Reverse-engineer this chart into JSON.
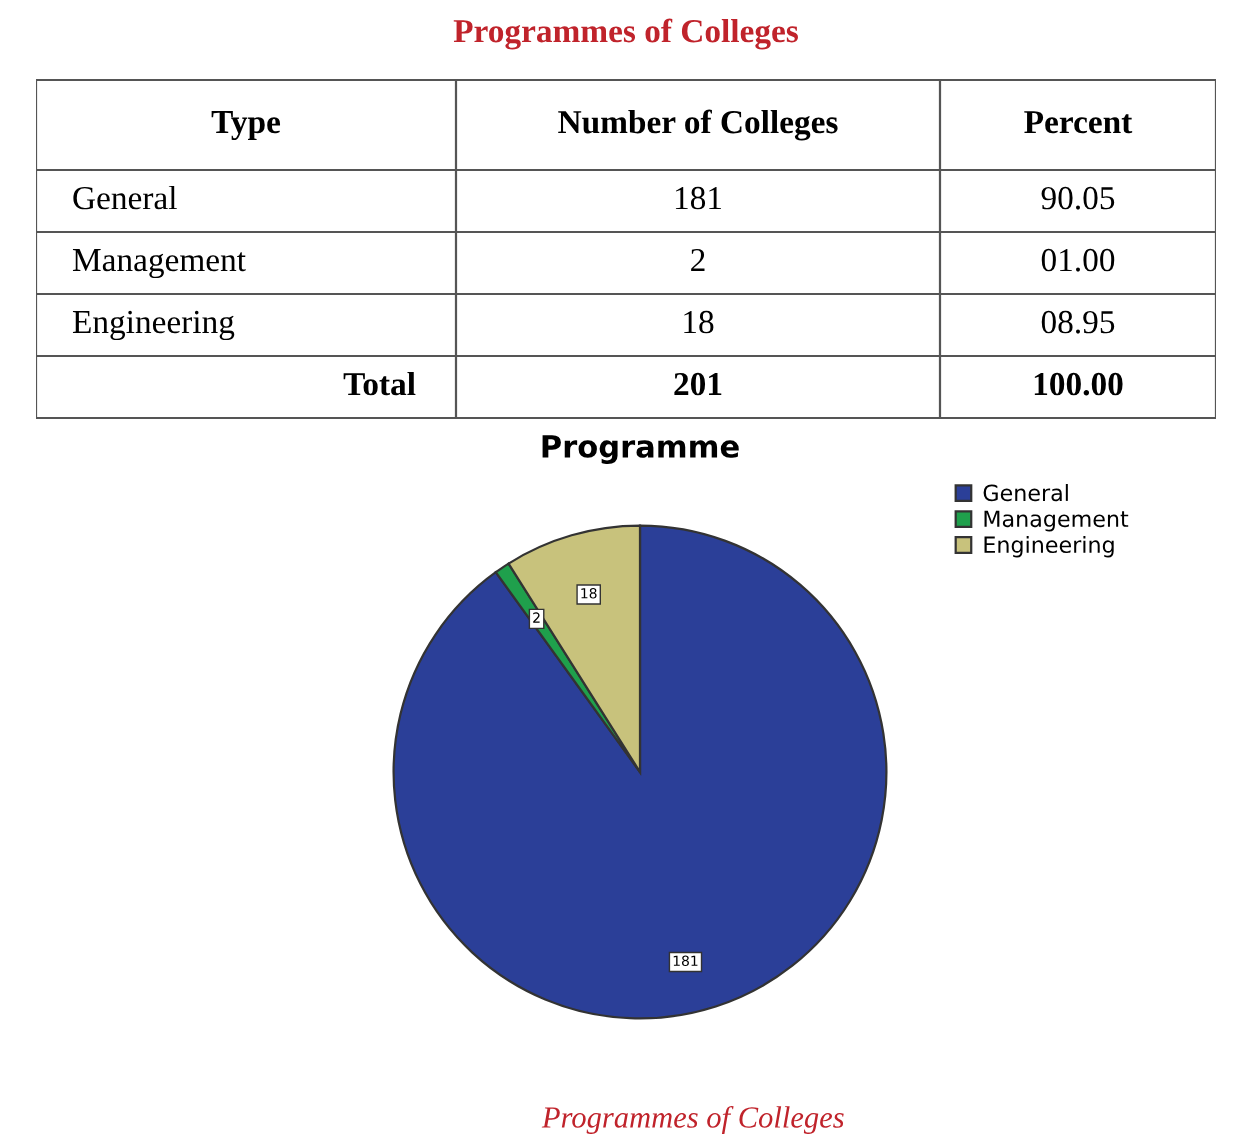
{
  "chart_data": [
    {
      "type": "other",
      "title": "Programmes of Colleges",
      "categories": [
        "Type",
        "Number of Colleges",
        "Percent"
      ],
      "annotations": [
        "General",
        "181",
        "90.05",
        "Management",
        "2",
        "01.00",
        "Engineering",
        "18",
        "08.95",
        "Total",
        "201",
        "100.00"
      ]
    },
    {
      "type": "pie",
      "title": "Programme",
      "categories": [
        "General",
        "Management",
        "Engineering"
      ],
      "values": [
        181,
        2,
        18
      ],
      "colors": [
        "#2b3f98",
        "#1fa04c",
        "#c8c27c"
      ],
      "data_labels": true,
      "legend": "top right",
      "annotations": [
        "Programmes of Colleges"
      ]
    }
  ]
}
